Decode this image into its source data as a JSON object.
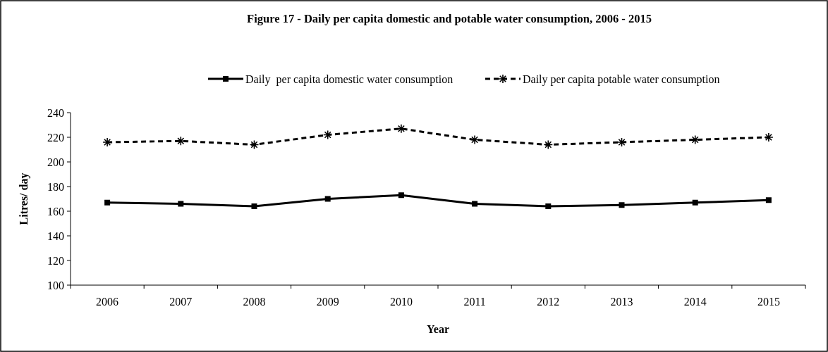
{
  "chart_data": {
    "type": "line",
    "title": "Figure 17 - Daily per capita domestic and potable water consumption, 2006 - 2015",
    "xlabel": "Year",
    "ylabel": "Litres/ day",
    "categories": [
      "2006",
      "2007",
      "2008",
      "2009",
      "2010",
      "2011",
      "2012",
      "2013",
      "2014",
      "2015"
    ],
    "series": [
      {
        "name": "Daily  per capita domestic water consumption",
        "color": "#000000",
        "values": [
          167,
          166,
          164,
          170,
          173,
          166,
          164,
          165,
          167,
          169
        ],
        "marker": "square",
        "line_style": "solid"
      },
      {
        "name": "Daily per capita potable water consumption",
        "color": "#000000",
        "values": [
          216,
          217,
          214,
          222,
          227,
          218,
          214,
          216,
          218,
          220
        ],
        "marker": "cross",
        "line_style": "dashed"
      }
    ],
    "ylim": [
      100,
      240
    ],
    "yticks": [
      100,
      120,
      140,
      160,
      180,
      200,
      220,
      240
    ],
    "grid": false,
    "legend": "top"
  }
}
